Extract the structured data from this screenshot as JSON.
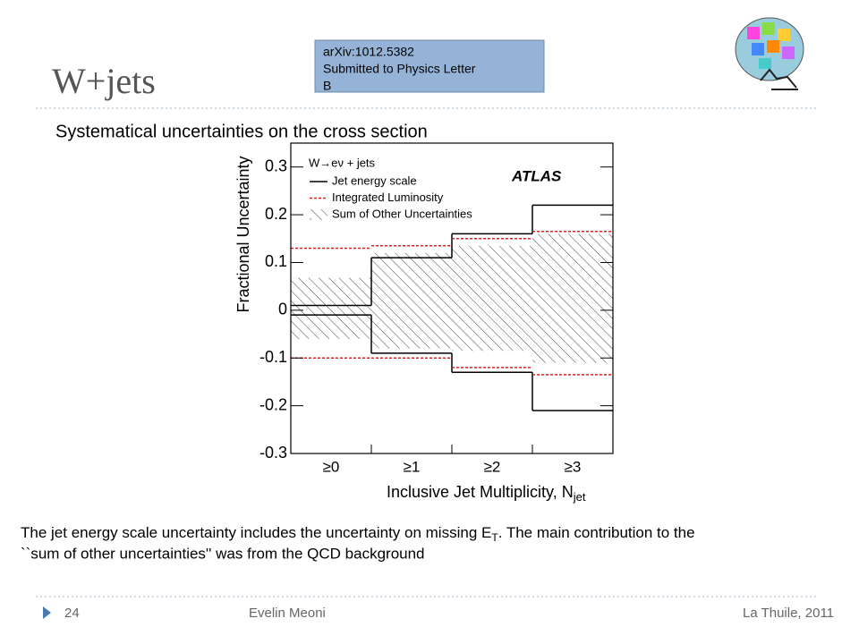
{
  "slide": {
    "title": "W+jets",
    "note_lines": [
      "arXiv:1012.5382",
      "Submitted to Physics Letter",
      "B"
    ],
    "subtitle": "Systematical uncertainties on the cross section",
    "caption": {
      "line1": "The jet energy scale uncertainty includes the uncertainty on missing E",
      "line1_sub": "T",
      "line1_end": ". The main contribution to the",
      "line2": "``sum of other uncertainties'' was from the  QCD background"
    },
    "footer": {
      "page": "24",
      "author": "Evelin Meoni",
      "event": "La Thuile, 2011"
    }
  },
  "chart_data": {
    "type": "step_band",
    "categories": [
      "≥0",
      "≥1",
      "≥2",
      "≥3"
    ],
    "x_label": "Inclusive Jet Multiplicity, N",
    "x_label_sub": "jet",
    "y_label": "Fractional Uncertainty",
    "legend_title": "W→eν + jets",
    "annotation": "ATLAS",
    "ylim": [
      -0.3,
      0.35
    ],
    "yticks": [
      -0.3,
      -0.2,
      -0.1,
      0,
      0.1,
      0.2,
      0.3
    ],
    "series": [
      {
        "name": "Jet energy scale",
        "color": "#000000",
        "style": "solid",
        "values": [
          0.01,
          0.11,
          0.16,
          0.22
        ],
        "lower_values": [
          -0.01,
          -0.09,
          -0.13,
          -0.21
        ]
      },
      {
        "name": "Integrated Luminosity",
        "color": "#e02020",
        "style": "dotted",
        "values": [
          0.13,
          0.135,
          0.15,
          0.165
        ],
        "lower_values": [
          -0.1,
          -0.1,
          -0.12,
          -0.135
        ]
      },
      {
        "name": "Sum of Other Uncertainties",
        "color": "#444444",
        "style": "hatched",
        "values": [
          0.068,
          0.12,
          0.135,
          0.16
        ],
        "lower_values": [
          -0.06,
          -0.08,
          -0.085,
          -0.11
        ]
      }
    ]
  }
}
